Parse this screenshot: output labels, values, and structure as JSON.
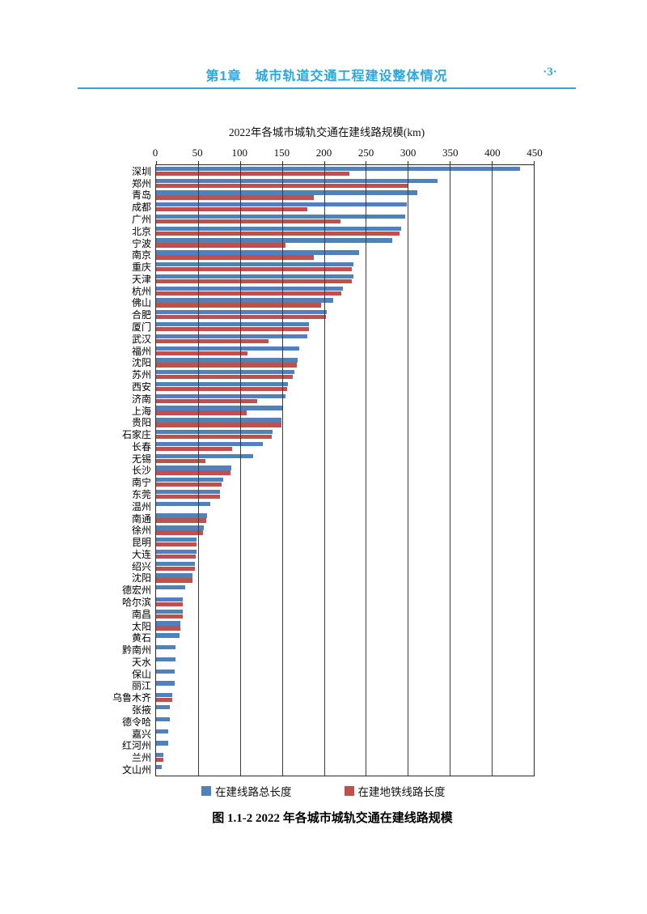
{
  "header": {
    "chapter_title": "第1章　城市轨道交通工程建设整体情况",
    "page_number": "·3·",
    "accent_color": "#2aa7e0"
  },
  "chart_data": {
    "type": "bar",
    "orientation": "horizontal",
    "title": "2022年各城市城轨交通在建线路规模(km)",
    "xlabel": "",
    "ylabel": "",
    "xlim": [
      0,
      450
    ],
    "xticks": [
      0,
      50,
      100,
      150,
      200,
      250,
      300,
      350,
      400,
      450
    ],
    "grid": "vertical gridlines every 50, drawn over bars",
    "legend_position": "bottom",
    "categories": [
      "深圳",
      "郑州",
      "青岛",
      "成都",
      "广州",
      "北京",
      "宁波",
      "南京",
      "重庆",
      "天津",
      "杭州",
      "佛山",
      "合肥",
      "厦门",
      "武汉",
      "福州",
      "沈阳",
      "苏州",
      "西安",
      "济南",
      "上海",
      "贵阳",
      "石家庄",
      "长春",
      "无锡",
      "长沙",
      "南宁",
      "东莞",
      "温州",
      "南通",
      "徐州",
      "昆明",
      "大连",
      "绍兴",
      "沈阳",
      "德宏州",
      "哈尔滨",
      "南昌",
      "太阳",
      "黄石",
      "黔南州",
      "天水",
      "保山",
      "丽江",
      "乌鲁木齐",
      "张掖",
      "德令哈",
      "嘉兴",
      "红河州",
      "兰州",
      "文山州"
    ],
    "series": [
      {
        "name": "在建线路总长度",
        "color": "#4f81bd",
        "values": [
          434,
          335,
          311,
          299,
          297,
          292,
          281,
          242,
          235,
          235,
          223,
          211,
          203,
          182,
          180,
          171,
          169,
          165,
          157,
          154,
          150,
          149,
          139,
          127,
          116,
          90,
          80,
          76,
          65,
          61,
          57,
          48,
          48,
          46,
          43,
          35,
          32,
          32,
          29,
          28,
          23,
          23,
          22,
          22,
          19,
          16,
          16,
          14,
          14,
          9,
          7
        ]
      },
      {
        "name": "在建地铁线路长度",
        "color": "#c0504d",
        "values": [
          230,
          301,
          188,
          180,
          220,
          290,
          154,
          188,
          233,
          233,
          221,
          197,
          202,
          182,
          134,
          109,
          168,
          163,
          156,
          120,
          108,
          149,
          138,
          91,
          59,
          89,
          78,
          76,
          0,
          60,
          56,
          48,
          47,
          46,
          43,
          0,
          32,
          32,
          29,
          0,
          0,
          0,
          0,
          0,
          19,
          0,
          0,
          0,
          0,
          9,
          0
        ]
      }
    ]
  },
  "caption": "图 1.1-2  2022 年各城市城轨交通在建线路规模"
}
